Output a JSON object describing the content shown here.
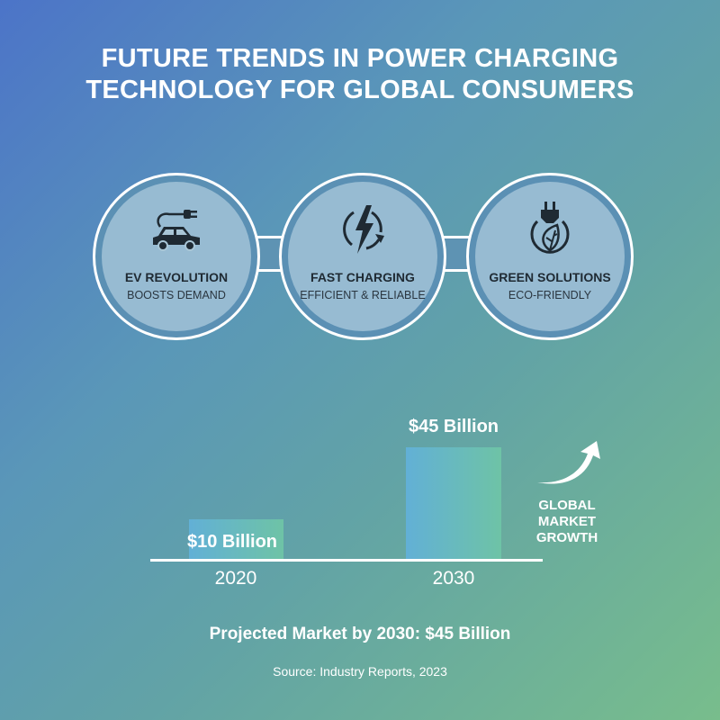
{
  "title": {
    "line1": "FUTURE TRENDS IN POWER CHARGING",
    "line2": "TECHNOLOGY FOR GLOBAL CONSUMERS"
  },
  "trends": [
    {
      "icon": "electric-car-plug-icon",
      "heading": "EV REVOLUTION",
      "sub": "BOOSTS DEMAND"
    },
    {
      "icon": "lightning-cycle-icon",
      "heading": "FAST CHARGING",
      "sub": "EFFICIENT & RELIABLE"
    },
    {
      "icon": "plug-leaf-icon",
      "heading": "GREEN SOLUTIONS",
      "sub": "ECO-FRIENDLY"
    }
  ],
  "chart_data": {
    "type": "bar",
    "categories": [
      "2020",
      "2030"
    ],
    "values": [
      10,
      45
    ],
    "data_labels": [
      "$10 Billion",
      "$45 Billion"
    ],
    "ylim": [
      0,
      45
    ],
    "grid": false,
    "colors": {
      "bar_start": "#62b0d6",
      "bar_end": "#6ec3a6"
    }
  },
  "growth": {
    "icon": "curved-up-arrow-icon",
    "label_lines": [
      "GLOBAL",
      "MARKET",
      "GROWTH"
    ]
  },
  "projection": "Projected Market by 2030: $45 Billion",
  "source": "Source: Industry Reports, 2023"
}
